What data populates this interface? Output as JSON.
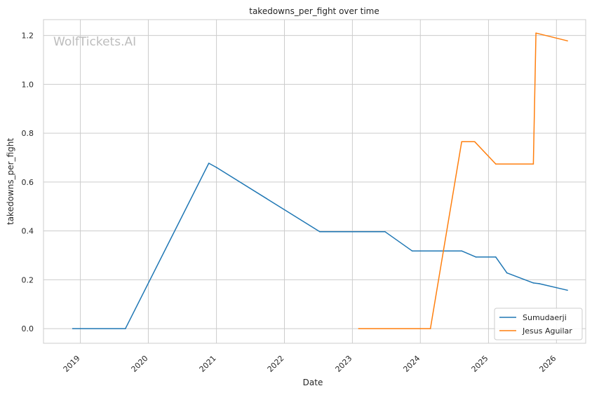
{
  "chart_data": {
    "type": "line",
    "title": "takedowns_per_fight over time",
    "xlabel": "Date",
    "ylabel": "takedowns_per_fight",
    "watermark": "WolfTickets.AI",
    "x_ticks": [
      "2019",
      "2020",
      "2021",
      "2022",
      "2023",
      "2024",
      "2025",
      "2026"
    ],
    "y_ticks": [
      "0.0",
      "0.2",
      "0.4",
      "0.6",
      "0.8",
      "1.0",
      "1.2"
    ],
    "xlim": [
      "2018-06-17",
      "2026-06-07"
    ],
    "ylim": [
      -0.06,
      1.265
    ],
    "grid": true,
    "legend_position": "lower-right",
    "series": [
      {
        "name": "Sumudaerji",
        "color": "#1f77b4",
        "points": [
          [
            "2018-11-21",
            0.0
          ],
          [
            "2019-08-31",
            0.0
          ],
          [
            "2020-11-21",
            0.677
          ],
          [
            "2021-01-01",
            0.66
          ],
          [
            "2022-07-10",
            0.397
          ],
          [
            "2023-06-25",
            0.397
          ],
          [
            "2023-11-18",
            0.318
          ],
          [
            "2024-08-10",
            0.318
          ],
          [
            "2024-10-26",
            0.293
          ],
          [
            "2025-02-09",
            0.293
          ],
          [
            "2025-04-10",
            0.228
          ],
          [
            "2025-08-30",
            0.187
          ],
          [
            "2025-09-30",
            0.184
          ],
          [
            "2026-03-01",
            0.157
          ]
        ]
      },
      {
        "name": "Jesus Aguilar",
        "color": "#ff7f0e",
        "points": [
          [
            "2023-02-04",
            0.0
          ],
          [
            "2024-02-24",
            0.0
          ],
          [
            "2024-08-10",
            0.765
          ],
          [
            "2024-10-19",
            0.765
          ],
          [
            "2025-02-09",
            0.674
          ],
          [
            "2025-08-30",
            0.674
          ],
          [
            "2025-09-13",
            1.21
          ],
          [
            "2026-03-01",
            1.178
          ]
        ]
      }
    ]
  }
}
